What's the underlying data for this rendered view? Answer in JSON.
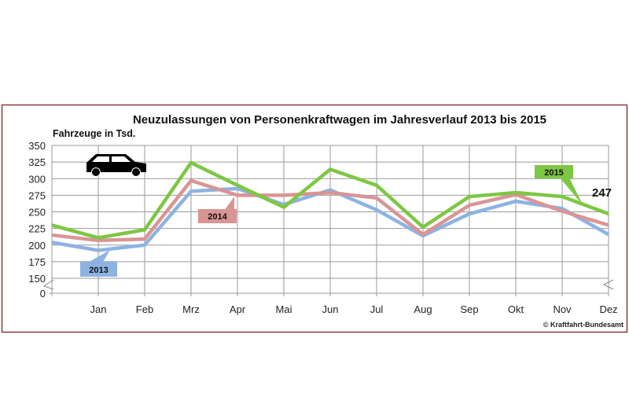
{
  "chart_data": {
    "type": "line",
    "title": "Neuzulassungen von Personenkraftwagen im Jahresverlauf 2013 bis 2015",
    "ylabel": "Fahrzeuge in Tsd.",
    "xlabel": "",
    "categories": [
      "",
      "Jan",
      "Feb",
      "Mrz",
      "Apr",
      "Mai",
      "Jun",
      "Jul",
      "Aug",
      "Sep",
      "Okt",
      "Nov",
      "Dez"
    ],
    "y_ticks": [
      0,
      150,
      175,
      200,
      225,
      250,
      275,
      300,
      325,
      350
    ],
    "ylim": [
      150,
      350
    ],
    "axis_break": "0 to 150",
    "grid": true,
    "series": [
      {
        "name": "2013",
        "color": "#8db3e2",
        "values": [
          204,
          192,
          200,
          281,
          285,
          261,
          283,
          253,
          214,
          247,
          266,
          255,
          216
        ]
      },
      {
        "name": "2014",
        "color": "#d99594",
        "values": [
          215,
          207,
          209,
          297,
          275,
          275,
          279,
          271,
          216,
          260,
          276,
          251,
          230
        ]
      },
      {
        "name": "2015",
        "color": "#7dc744",
        "values": [
          230,
          211,
          223,
          324,
          290,
          257,
          314,
          290,
          227,
          273,
          279,
          273,
          247
        ]
      }
    ],
    "annotations": {
      "last_value": "247"
    },
    "source": "© Kraftfahrt-Bundesamt"
  }
}
